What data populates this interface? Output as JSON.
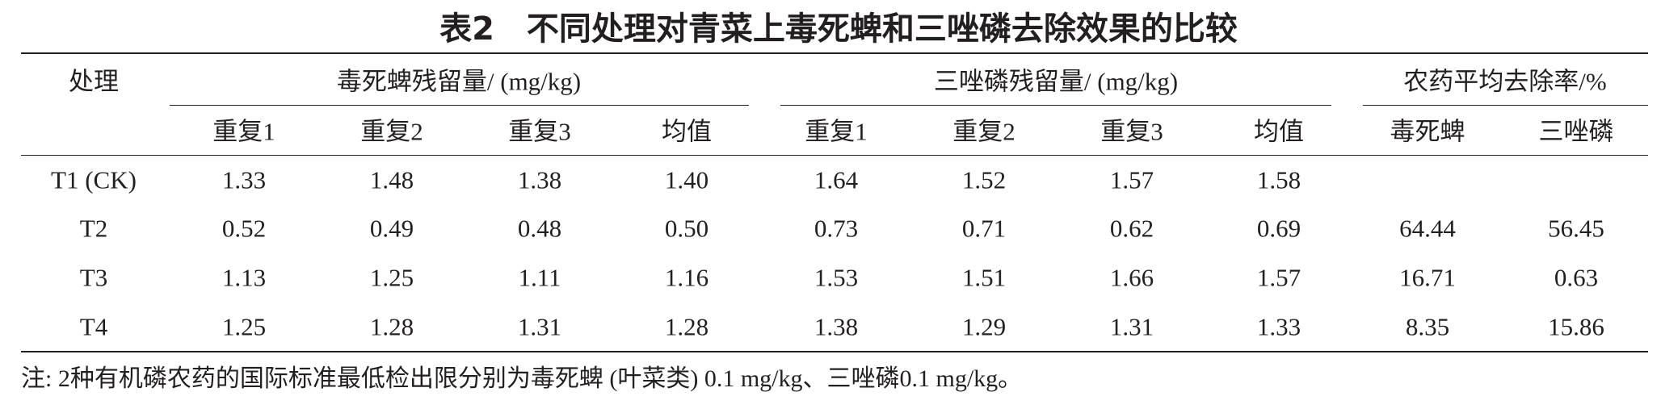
{
  "title": "表2　不同处理对青菜上毒死蜱和三唑磷去除效果的比较",
  "header": {
    "row_label": "处理",
    "groups": [
      "毒死蜱残留量/ (mg/kg)",
      "三唑磷残留量/ (mg/kg)",
      "农药平均去除率/%"
    ],
    "subheaders": [
      "重复1",
      "重复2",
      "重复3",
      "均值",
      "重复1",
      "重复2",
      "重复3",
      "均值",
      "毒死蜱",
      "三唑磷"
    ]
  },
  "rows": [
    [
      "T1 (CK)",
      "1.33",
      "1.48",
      "1.38",
      "1.40",
      "1.64",
      "1.52",
      "1.57",
      "1.58",
      null,
      null
    ],
    [
      "T2",
      "0.52",
      "0.49",
      "0.48",
      "0.50",
      "0.73",
      "0.71",
      "0.62",
      "0.69",
      "64.44",
      "56.45"
    ],
    [
      "T3",
      "1.13",
      "1.25",
      "1.11",
      "1.16",
      "1.53",
      "1.51",
      "1.66",
      "1.57",
      "16.71",
      "0.63"
    ],
    [
      "T4",
      "1.25",
      "1.28",
      "1.31",
      "1.28",
      "1.38",
      "1.29",
      "1.31",
      "1.33",
      "8.35",
      "15.86"
    ]
  ],
  "note": "注: 2种有机磷农药的国际标准最低检出限分别为毒死蜱 (叶菜类) 0.1 mg/kg、三唑磷0.1 mg/kg。"
}
